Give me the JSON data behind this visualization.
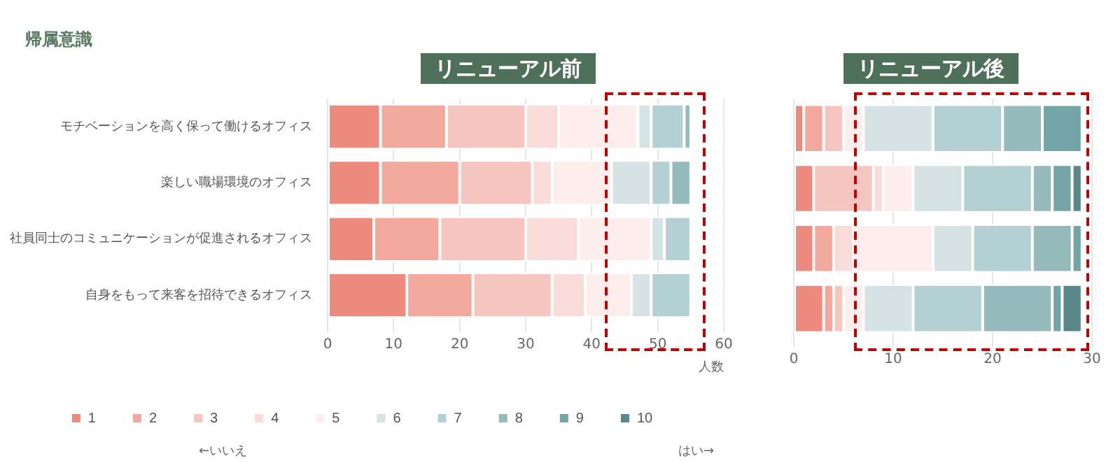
{
  "chart_data": [
    {
      "type": "bar",
      "orientation": "horizontal",
      "stacked": true,
      "title": "帰属意識",
      "subtitle": "リニューアル前",
      "xlabel": "人数",
      "categories": [
        "モチベーションを高く保って働けるオフィス",
        "楽しい職場環境のオフィス",
        "社員同士のコミュニケーションが促進されるオフィス",
        "自身をもって来客を招待できるオフィス"
      ],
      "series": [
        {
          "name": "1",
          "color": "#ee8a7d",
          "values": [
            8,
            8,
            7,
            12
          ]
        },
        {
          "name": "2",
          "color": "#f2a89d",
          "values": [
            10,
            12,
            10,
            10
          ]
        },
        {
          "name": "3",
          "color": "#f6c5bf",
          "values": [
            12,
            11,
            13,
            12
          ]
        },
        {
          "name": "4",
          "color": "#f9dcd8",
          "values": [
            5,
            3,
            8,
            5
          ]
        },
        {
          "name": "5",
          "color": "#fdeeed",
          "values": [
            12,
            9,
            11,
            7
          ]
        },
        {
          "name": "6",
          "color": "#d5e3e4",
          "values": [
            2,
            6,
            2,
            3
          ]
        },
        {
          "name": "7",
          "color": "#b4d0d2",
          "values": [
            5,
            3,
            4,
            6
          ]
        },
        {
          "name": "8",
          "color": "#94babb",
          "values": [
            1,
            3,
            0,
            0
          ]
        },
        {
          "name": "9",
          "color": "#74a5a6",
          "values": [
            0,
            0,
            0,
            0
          ]
        },
        {
          "name": "10",
          "color": "#5a8889",
          "values": [
            0,
            0,
            0,
            0
          ]
        }
      ],
      "xlim": [
        0,
        60
      ],
      "xticks": [
        0,
        10,
        20,
        30,
        40,
        50,
        60
      ],
      "grid": "x",
      "legend": "bottom",
      "annotations": [
        "←いいえ",
        "はい→"
      ]
    },
    {
      "type": "bar",
      "orientation": "horizontal",
      "stacked": true,
      "subtitle": "リニューアル後",
      "categories": [
        null,
        null,
        null,
        null
      ],
      "series": [
        {
          "color": "#ee8a7d",
          "values": [
            1,
            2,
            2,
            3
          ]
        },
        {
          "color": "#f2a89d",
          "values": [
            2,
            0,
            2,
            1
          ]
        },
        {
          "color": "#f6c5bf",
          "values": [
            2,
            6,
            0,
            1
          ]
        },
        {
          "color": "#f9dcd8",
          "values": [
            0,
            1,
            2,
            0
          ]
        },
        {
          "color": "#fdeeed",
          "values": [
            2,
            3,
            8,
            2
          ]
        },
        {
          "color": "#d5e3e4",
          "values": [
            7,
            5,
            4,
            5
          ]
        },
        {
          "color": "#b4d0d2",
          "values": [
            7,
            7,
            6,
            7
          ]
        },
        {
          "color": "#94babb",
          "values": [
            4,
            2,
            4,
            7
          ]
        },
        {
          "color": "#74a5a6",
          "values": [
            4,
            2,
            1,
            1
          ]
        },
        {
          "color": "#5a8889",
          "values": [
            0,
            1,
            0,
            2
          ]
        }
      ],
      "xlim": [
        0,
        30
      ],
      "xticks": [
        0,
        10,
        20,
        30
      ],
      "grid": "x"
    }
  ]
}
